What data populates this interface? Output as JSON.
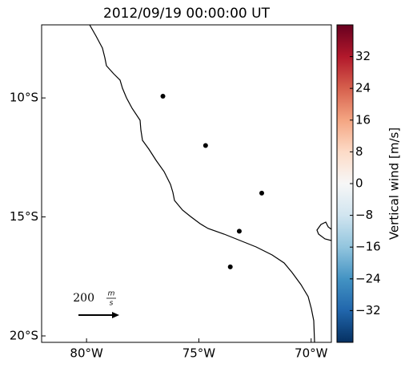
{
  "chart_data": {
    "type": "scatter",
    "title": "2012/09/19 00:00:00 UT",
    "x": [
      -76.6,
      -74.7,
      -72.2,
      -73.2,
      -73.6
    ],
    "series": [
      {
        "color": "#000000",
        "values": [
          -9.93,
          -12.0,
          -14.0,
          -15.6,
          -17.1
        ]
      }
    ],
    "xlim": [
      -82,
      -69.1
    ],
    "ylim": [
      -20.27,
      -6.93
    ],
    "xticks": [
      {
        "value": -80,
        "label": "80°W"
      },
      {
        "value": -75,
        "label": "75°W"
      },
      {
        "value": -70,
        "label": "70°W"
      }
    ],
    "yticks": [
      {
        "value": -10,
        "label": "10°S"
      },
      {
        "value": -15,
        "label": "15°S"
      },
      {
        "value": -20,
        "label": "20°S"
      }
    ],
    "colorbar": {
      "label": "Vertical wind [m/s]",
      "lim": [
        -40,
        40
      ],
      "colormap": [
        "#053061",
        "#2166ac",
        "#4393c3",
        "#92c5de",
        "#d1e5f0",
        "#f7f7f7",
        "#fddbc7",
        "#f4a582",
        "#d6604d",
        "#b2182b",
        "#67001f"
      ],
      "ticks": [
        {
          "value": -32,
          "label": "−32"
        },
        {
          "value": -24,
          "label": "−24"
        },
        {
          "value": -16,
          "label": "−16"
        },
        {
          "value": -8,
          "label": "−8"
        },
        0,
        8,
        16,
        24,
        32
      ]
    },
    "scale_arrow": {
      "value": "200",
      "numerator": "m",
      "denominator": "s"
    }
  }
}
